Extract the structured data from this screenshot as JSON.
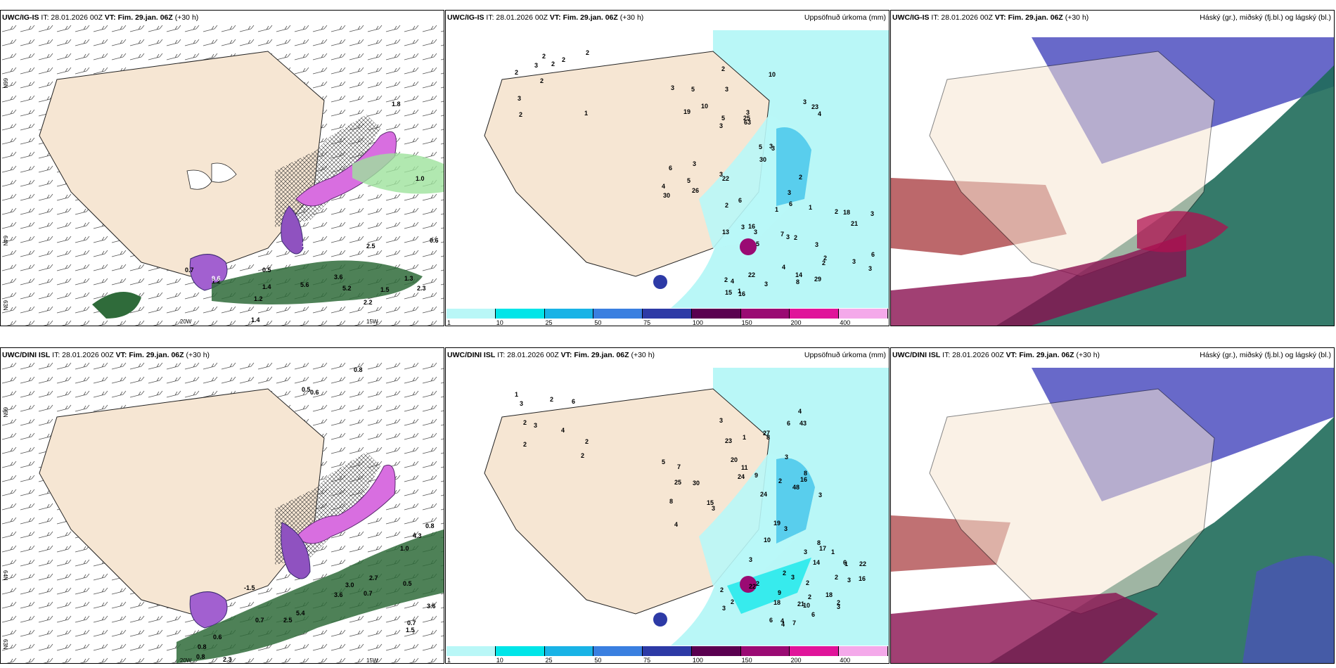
{
  "panels": [
    {
      "model": "UWC/IG-IS",
      "init": "IT: 28.01.2026 00Z",
      "vt_label": "VT:",
      "vt": "Fim. 29.jan. 06Z",
      "lead": "(+30 h)",
      "title_right": ""
    },
    {
      "model": "UWC/IG-IS",
      "init": "IT: 28.01.2026 00Z",
      "vt_label": "VT:",
      "vt": "Fim. 29.jan. 06Z",
      "lead": "(+30 h)",
      "title_right": "Uppsöfnuð úrkoma (mm)"
    },
    {
      "model": "UWC/IG-IS",
      "init": "IT: 28.01.2026 00Z",
      "vt_label": "VT:",
      "vt": "Fim. 29.jan. 06Z",
      "lead": "(+30 h)",
      "title_right": "Háský (gr.), miðský (fj.bl.) og lágský (bl.)"
    },
    {
      "model": "UWC/DINI ISL",
      "init": "IT: 28.01.2026 00Z",
      "vt_label": "VT:",
      "vt": "Fim. 29.jan. 06Z",
      "lead": "(+30 h)",
      "title_right": ""
    },
    {
      "model": "UWC/DINI ISL",
      "init": "IT: 28.01.2026 00Z",
      "vt_label": "VT:",
      "vt": "Fim. 29.jan. 06Z",
      "lead": "(+30 h)",
      "title_right": "Uppsöfnuð úrkoma (mm)"
    },
    {
      "model": "UWC/DINI ISL",
      "init": "IT: 28.01.2026 00Z",
      "vt_label": "VT:",
      "vt": "Fim. 29.jan. 06Z",
      "lead": "(+30 h)",
      "title_right": "Háský (gr.), miðský (fj.bl.) og lágský (bl.)"
    }
  ],
  "axes": {
    "lat66": "66N",
    "lat64": "64N",
    "lat63": "63N",
    "lon20": "20W",
    "lon15": "15W",
    "lat65r": "65N"
  },
  "colorbar": {
    "labels": [
      "1",
      "10",
      "25",
      "50",
      "75",
      "100",
      "150",
      "200",
      "400"
    ],
    "colors": [
      "#b9f7f7",
      "#00e5e8",
      "#19b3e6",
      "#3a7fe0",
      "#2d3aa6",
      "#5a0050",
      "#9a0a73",
      "#e0149a",
      "#f4a9ea"
    ]
  },
  "precip_top": {
    "values": [
      "1",
      "2",
      "2",
      "2",
      "2",
      "2",
      "2",
      "2",
      "3",
      "3",
      "4",
      "5",
      "3",
      "3",
      "3",
      "3",
      "2",
      "4",
      "5",
      "3",
      "3",
      "3",
      "5",
      "5",
      "10",
      "3",
      "3",
      "2",
      "3",
      "6",
      "10",
      "19",
      "30",
      "26",
      "23",
      "25",
      "30",
      "22",
      "63",
      "6",
      "21",
      "3",
      "2",
      "29",
      "22",
      "16",
      "15",
      "14",
      "18",
      "6",
      "5",
      "13",
      "16",
      "2",
      "1",
      "1",
      "1",
      "3",
      "3",
      "4",
      "3",
      "2",
      "3",
      "2",
      "2",
      "3",
      "6",
      "7",
      "8",
      "2",
      "4",
      "3",
      "3"
    ]
  },
  "precip_bottom": {
    "values": [
      "2",
      "2",
      "4",
      "1",
      "2",
      "3",
      "2",
      "3",
      "6",
      "2",
      "8",
      "3",
      "3",
      "3",
      "9",
      "8",
      "2",
      "11",
      "5",
      "4",
      "4",
      "1",
      "3",
      "3",
      "8",
      "7",
      "30",
      "24",
      "20",
      "43",
      "24",
      "25",
      "15",
      "27",
      "23",
      "48",
      "16",
      "19",
      "6",
      "10",
      "18",
      "10",
      "6",
      "8",
      "9",
      "22",
      "22",
      "17",
      "14",
      "21",
      "18",
      "16",
      "2",
      "3",
      "2",
      "2",
      "4",
      "3",
      "2",
      "2",
      "4",
      "6",
      "3",
      "3",
      "3",
      "2",
      "2",
      "2",
      "1",
      "1",
      "3",
      "7",
      "6"
    ]
  },
  "msl_top": {
    "values": [
      "1.0",
      "0.6",
      "0.7",
      "0.5",
      "1.2",
      "1.2",
      "5.6",
      "3.6",
      "5.2",
      "1.3",
      "2.3",
      "2.2",
      "1.4",
      "1.5",
      "1.8",
      "14",
      "9.6",
      "1.4",
      "2.5"
    ]
  },
  "msl_bottom": {
    "values": [
      "0.8",
      "0.5",
      "0.6",
      "1.0",
      "0.5",
      "0.8",
      "-1.5",
      "0.7",
      "0.8",
      "3.6",
      "3.0",
      "4.3",
      "2.5",
      "1.5",
      "5.4",
      "0.7",
      "3.6",
      "0.6",
      "0.7",
      "2.7",
      "2.3",
      "0.8"
    ]
  }
}
